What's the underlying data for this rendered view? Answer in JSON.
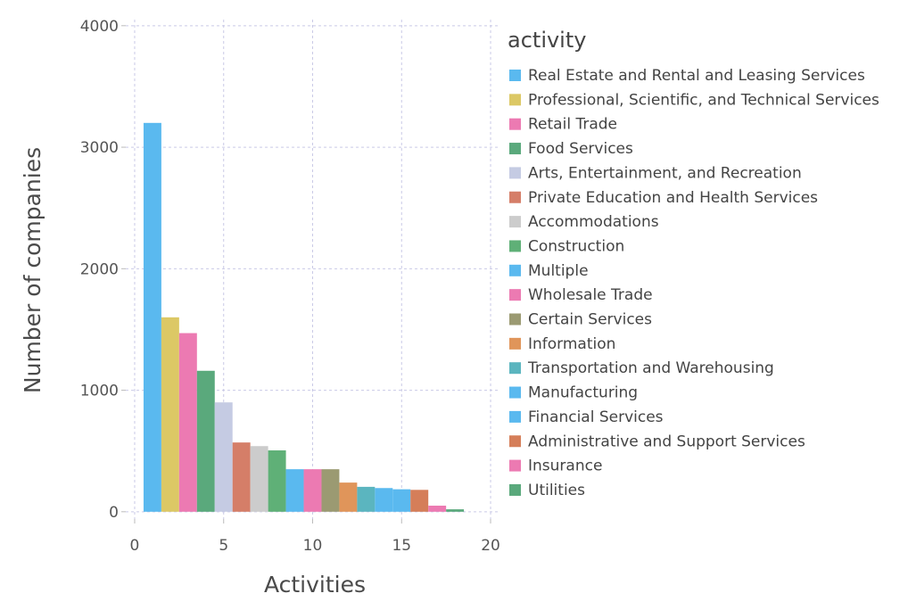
{
  "chart_data": {
    "type": "bar",
    "xlabel": "Activities",
    "ylabel": "Number of companies",
    "xlim": [
      -0.5,
      20.5
    ],
    "ylim": [
      -60,
      4050
    ],
    "x_ticks": [
      0,
      5,
      10,
      15,
      20
    ],
    "y_ticks": [
      0,
      1000,
      2000,
      3000,
      4000
    ],
    "grid": true,
    "legend_title": "activity",
    "legend_position": "right",
    "series": [
      {
        "name": "Real Estate and Rental and Leasing Services",
        "x": 1,
        "value": 3200,
        "color": "#5ab9ef"
      },
      {
        "name": "Professional, Scientific, and Technical Services",
        "x": 2,
        "value": 1600,
        "color": "#dcc865"
      },
      {
        "name": "Retail Trade",
        "x": 3,
        "value": 1470,
        "color": "#ec7ab2"
      },
      {
        "name": "Food Services",
        "x": 4,
        "value": 1160,
        "color": "#5aa97c"
      },
      {
        "name": "Arts, Entertainment, and Recreation",
        "x": 5,
        "value": 900,
        "color": "#c5cbe3"
      },
      {
        "name": "Private Education and Health Services",
        "x": 6,
        "value": 570,
        "color": "#d57e68"
      },
      {
        "name": "Accommodations",
        "x": 7,
        "value": 540,
        "color": "#cccccc"
      },
      {
        "name": "Construction",
        "x": 8,
        "value": 505,
        "color": "#5fb077"
      },
      {
        "name": "Multiple",
        "x": 9,
        "value": 350,
        "color": "#5ab9ef"
      },
      {
        "name": "Wholesale Trade",
        "x": 10,
        "value": 350,
        "color": "#ec7ab2"
      },
      {
        "name": "Certain Services",
        "x": 11,
        "value": 350,
        "color": "#9b9a72"
      },
      {
        "name": "Information",
        "x": 12,
        "value": 240,
        "color": "#e0955a"
      },
      {
        "name": "Transportation and Warehousing",
        "x": 13,
        "value": 205,
        "color": "#5bb5bf"
      },
      {
        "name": "Manufacturing",
        "x": 14,
        "value": 195,
        "color": "#5ab9ef"
      },
      {
        "name": "Financial Services",
        "x": 15,
        "value": 185,
        "color": "#5ab9ef"
      },
      {
        "name": "Administrative and Support Services",
        "x": 16,
        "value": 180,
        "color": "#d57e59"
      },
      {
        "name": "Insurance",
        "x": 17,
        "value": 50,
        "color": "#ec7ab2"
      },
      {
        "name": "Utilities",
        "x": 18,
        "value": 20,
        "color": "#5aa97c"
      }
    ]
  }
}
